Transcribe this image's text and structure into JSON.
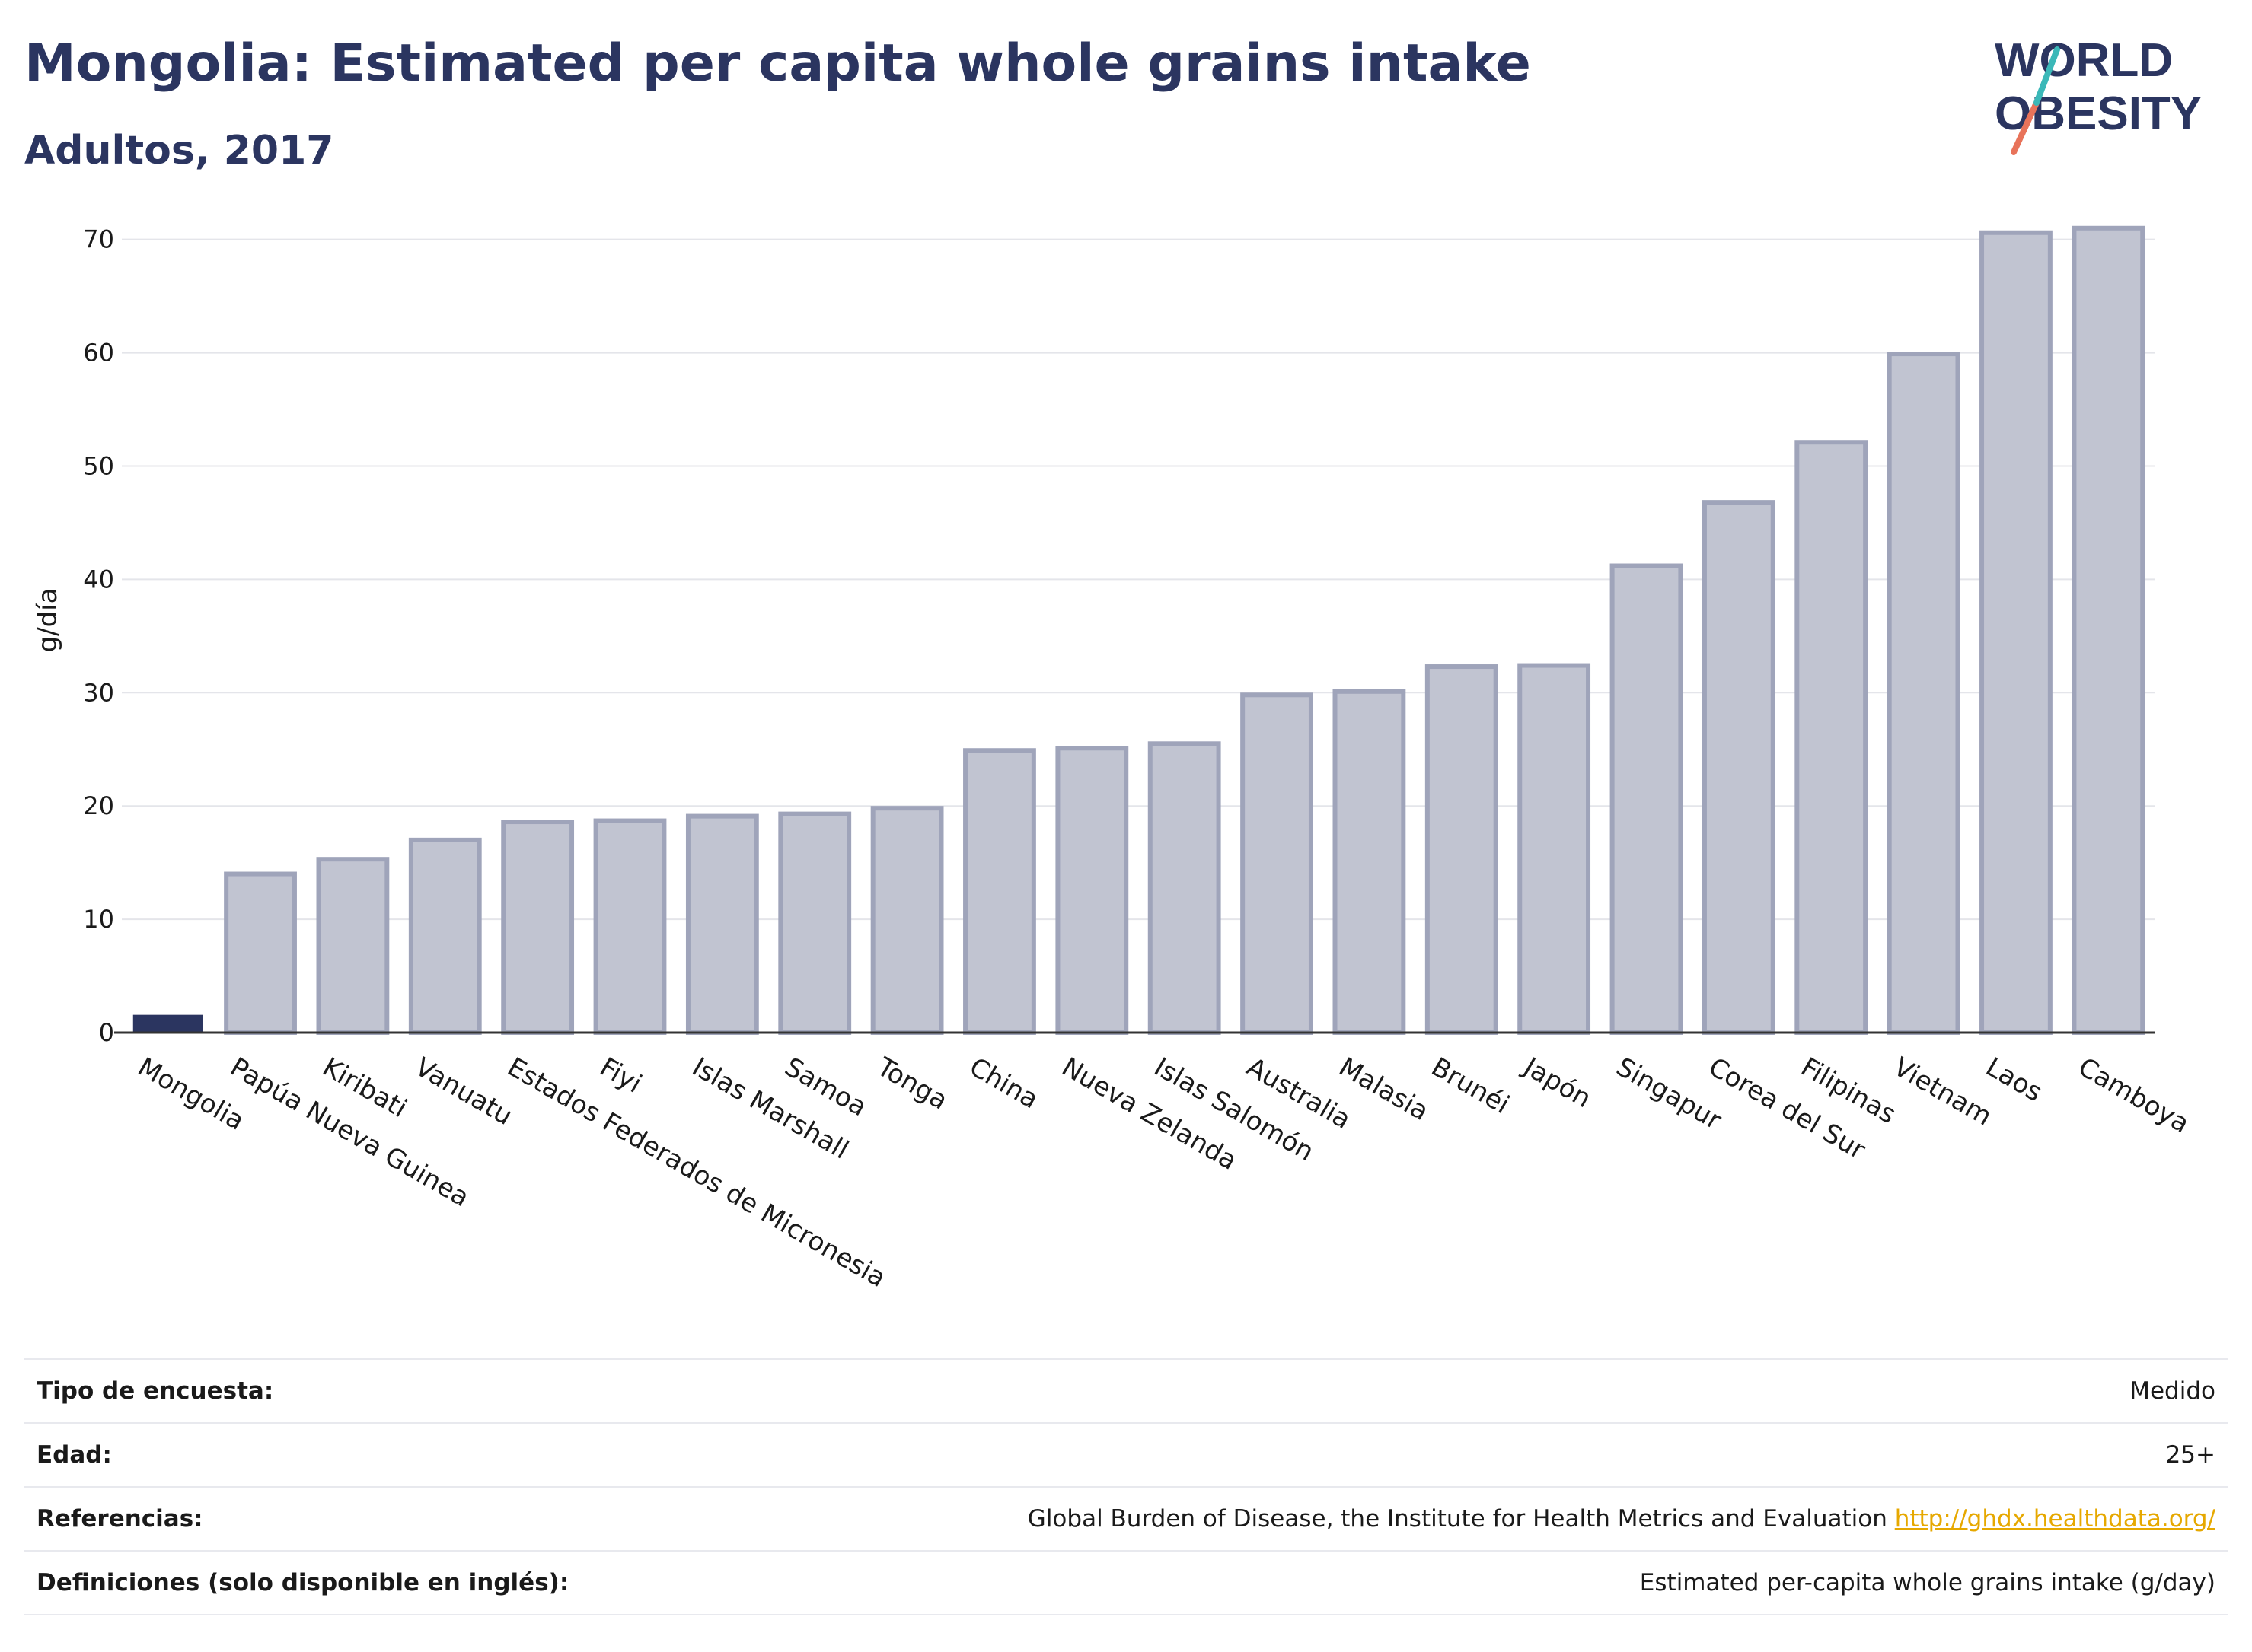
{
  "header": {
    "title": "Mongolia: Estimated per capita whole grains intake",
    "subtitle": "Adultos, 2017"
  },
  "logo": {
    "line1": "WORLD",
    "line2": "OBESITY"
  },
  "chart_data": {
    "type": "bar",
    "title": "Mongolia: Estimated per capita whole grains intake",
    "subtitle": "Adultos, 2017",
    "xlabel": "",
    "ylabel": "g/día",
    "ylim": [
      0,
      73
    ],
    "yticks": [
      0,
      10,
      20,
      30,
      40,
      50,
      60,
      70
    ],
    "grid": true,
    "categories": [
      "Mongolia",
      "Papúa Nueva Guinea",
      "Kiribati",
      "Vanuatu",
      "Estados Federados de Micronesia",
      "Fiyi",
      "Islas Marshall",
      "Samoa",
      "Tonga",
      "China",
      "Nueva Zelanda",
      "Islas Salomón",
      "Australia",
      "Malasia",
      "Brunéi",
      "Japón",
      "Singapur",
      "Corea del Sur",
      "Filipinas",
      "Vietnam",
      "Laos",
      "Camboya"
    ],
    "values": [
      1.5,
      14.0,
      15.3,
      17.0,
      18.6,
      18.7,
      19.1,
      19.3,
      19.8,
      24.9,
      25.1,
      25.5,
      29.8,
      30.1,
      32.3,
      32.4,
      41.2,
      46.8,
      52.1,
      59.9,
      70.6,
      71.0
    ],
    "highlight": "Mongolia",
    "colors": {
      "highlight": "#2b3560",
      "bar_fill": "#c1c4d1",
      "bar_stroke": "#9fa4ba"
    }
  },
  "meta": {
    "rows": [
      {
        "label": "Tipo de encuesta:",
        "value": "Medido"
      },
      {
        "label": "Edad:",
        "value": "25+"
      },
      {
        "label": "Referencias:",
        "value": "Global Burden of Disease, the Institute for Health Metrics and Evaluation",
        "link": "http://ghdx.healthdata.org/"
      },
      {
        "label": "Definiciones (solo disponible en inglés):",
        "value": "Estimated per-capita whole grains intake (g/day)"
      }
    ]
  }
}
